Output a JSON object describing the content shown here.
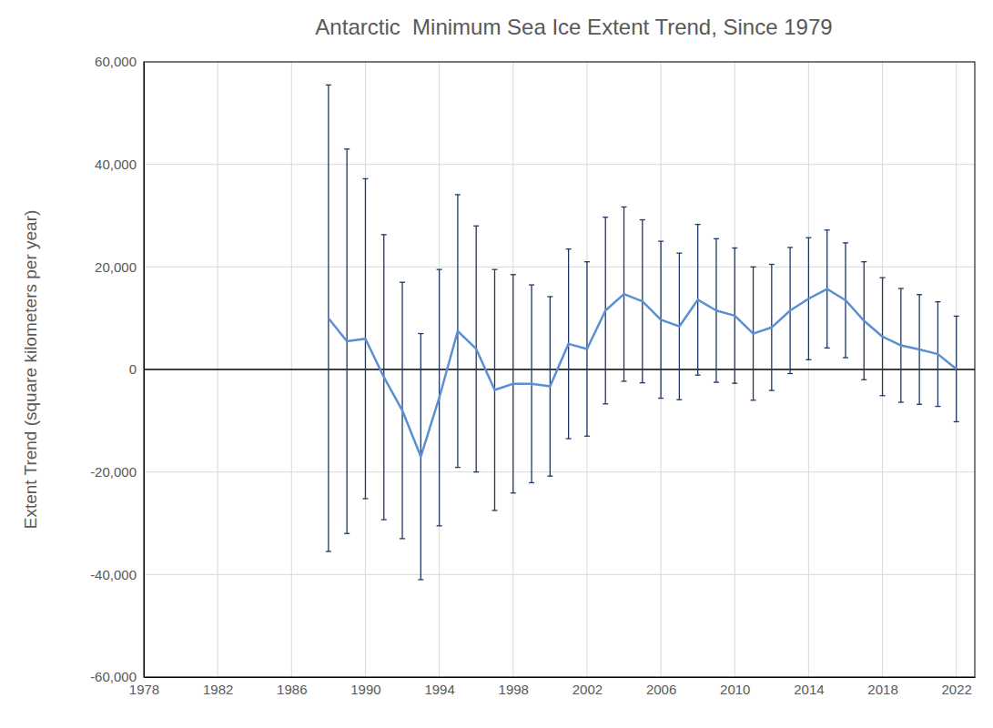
{
  "chart_data": {
    "type": "line",
    "title": "Antarctic  Minimum Sea Ice Extent Trend, Since 1979",
    "y_label": "Extent Trend (square kilometers per year)",
    "x": [
      1988,
      1989,
      1990,
      1991,
      1992,
      1993,
      1994,
      1995,
      1996,
      1997,
      1998,
      1999,
      2000,
      2001,
      2002,
      2003,
      2004,
      2005,
      2006,
      2007,
      2008,
      2009,
      2010,
      2011,
      2012,
      2013,
      2014,
      2015,
      2016,
      2017,
      2018,
      2019,
      2020,
      2021,
      2022
    ],
    "series": [
      {
        "color": "#5b8fd4",
        "values": [
          10000,
          5500,
          6000,
          -1500,
          -8000,
          -17000,
          -5500,
          7500,
          4000,
          -4000,
          -2800,
          -2800,
          -3300,
          5000,
          4000,
          11500,
          14700,
          13300,
          9700,
          8400,
          13600,
          11500,
          10500,
          7000,
          8200,
          11500,
          13800,
          15700,
          13500,
          9500,
          6400,
          4700,
          3900,
          3000,
          100
        ],
        "errors": [
          45500,
          37500,
          31200,
          27800,
          25000,
          24000,
          25000,
          26600,
          24000,
          23500,
          21300,
          19300,
          17500,
          18500,
          17000,
          18200,
          17000,
          15900,
          15300,
          14300,
          14700,
          14000,
          13200,
          13000,
          12300,
          12300,
          11900,
          11500,
          11200,
          11500,
          11500,
          11100,
          10700,
          10200,
          10300
        ]
      }
    ],
    "xlim": [
      1978,
      2023
    ],
    "xticks": [
      1978,
      1982,
      1986,
      1990,
      1994,
      1998,
      2002,
      2006,
      2010,
      2014,
      2018,
      2022
    ],
    "ylim": [
      -60000,
      60000
    ],
    "yticks": [
      {
        "value": -60000,
        "label": "-60,000"
      },
      {
        "value": -40000,
        "label": "-40,000"
      },
      {
        "value": -20000,
        "label": "-20,000"
      },
      0,
      {
        "value": 20000,
        "label": "20,000"
      },
      {
        "value": 40000,
        "label": "40,000"
      },
      {
        "value": 60000,
        "label": "60,000"
      }
    ],
    "grid": true
  }
}
